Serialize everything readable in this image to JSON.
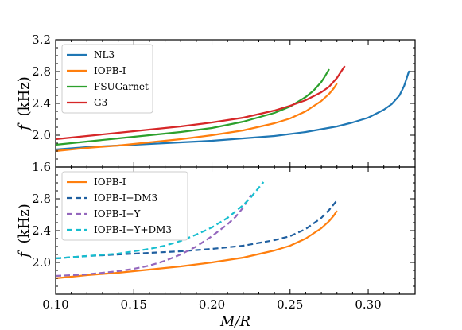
{
  "chart_data": [
    {
      "type": "line",
      "panel": "top",
      "ylabel_symbol": "f",
      "ylabel_unit": "(kHz)",
      "xlim": [
        0.1,
        0.33
      ],
      "ylim": [
        1.6,
        3.2
      ],
      "yticks": [
        1.6,
        2.0,
        2.4,
        2.8,
        3.2
      ],
      "ytick_labels": [
        "1.6",
        "2.0",
        "2.4",
        "2.8",
        "3.2"
      ],
      "legend_position": "top-left",
      "series": [
        {
          "name": "NL3",
          "color": "#1f77b4",
          "dash": "solid",
          "x": [
            0.1,
            0.12,
            0.14,
            0.16,
            0.18,
            0.2,
            0.22,
            0.24,
            0.26,
            0.28,
            0.29,
            0.3,
            0.31,
            0.315,
            0.32,
            0.323,
            0.325,
            0.326,
            0.327
          ],
          "y": [
            1.82,
            1.85,
            1.87,
            1.89,
            1.91,
            1.93,
            1.96,
            1.99,
            2.04,
            2.11,
            2.16,
            2.22,
            2.32,
            2.39,
            2.5,
            2.62,
            2.74,
            2.8,
            2.8
          ]
        },
        {
          "name": "IOPB-I",
          "color": "#ff7f0e",
          "dash": "solid",
          "x": [
            0.1,
            0.12,
            0.14,
            0.16,
            0.18,
            0.2,
            0.22,
            0.24,
            0.25,
            0.26,
            0.27,
            0.275,
            0.278,
            0.28
          ],
          "y": [
            1.8,
            1.84,
            1.87,
            1.91,
            1.95,
            2.0,
            2.06,
            2.15,
            2.21,
            2.3,
            2.43,
            2.52,
            2.59,
            2.65
          ]
        },
        {
          "name": "FSUGarnet",
          "color": "#2ca02c",
          "dash": "solid",
          "x": [
            0.1,
            0.12,
            0.14,
            0.16,
            0.18,
            0.2,
            0.22,
            0.24,
            0.25,
            0.26,
            0.265,
            0.27,
            0.272,
            0.275
          ],
          "y": [
            1.88,
            1.92,
            1.96,
            2.0,
            2.04,
            2.09,
            2.17,
            2.28,
            2.36,
            2.48,
            2.56,
            2.67,
            2.73,
            2.83
          ]
        },
        {
          "name": "G3",
          "color": "#d62728",
          "dash": "solid",
          "x": [
            0.1,
            0.12,
            0.14,
            0.16,
            0.18,
            0.2,
            0.22,
            0.24,
            0.25,
            0.26,
            0.27,
            0.275,
            0.28,
            0.285
          ],
          "y": [
            1.95,
            1.99,
            2.03,
            2.07,
            2.11,
            2.16,
            2.22,
            2.31,
            2.37,
            2.44,
            2.54,
            2.61,
            2.72,
            2.87
          ]
        }
      ]
    },
    {
      "type": "line",
      "panel": "bottom",
      "xlabel": "M/R",
      "ylabel_symbol": "f",
      "ylabel_unit": "(kHz)",
      "xlim": [
        0.1,
        0.33
      ],
      "ylim": [
        1.6,
        3.2
      ],
      "xticks": [
        0.1,
        0.15,
        0.2,
        0.25,
        0.3
      ],
      "xtick_labels": [
        "0.10",
        "0.15",
        "0.20",
        "0.25",
        "0.30"
      ],
      "yticks": [
        2.0,
        2.4,
        2.8
      ],
      "ytick_labels": [
        "2.0",
        "2.4",
        "2.8"
      ],
      "legend_position": "top-left",
      "series": [
        {
          "name": "IOPB-I",
          "color": "#ff7f0e",
          "dash": "solid",
          "x": [
            0.1,
            0.12,
            0.14,
            0.16,
            0.18,
            0.2,
            0.22,
            0.24,
            0.25,
            0.26,
            0.27,
            0.275,
            0.278,
            0.28
          ],
          "y": [
            1.8,
            1.84,
            1.87,
            1.91,
            1.95,
            2.0,
            2.06,
            2.15,
            2.21,
            2.3,
            2.43,
            2.52,
            2.59,
            2.65
          ]
        },
        {
          "name": "IOPB-I+DM3",
          "color": "#1f5fa0",
          "dash": "dashed",
          "x": [
            0.1,
            0.12,
            0.14,
            0.16,
            0.18,
            0.2,
            0.22,
            0.24,
            0.25,
            0.26,
            0.27,
            0.275,
            0.28
          ],
          "y": [
            2.05,
            2.08,
            2.1,
            2.12,
            2.14,
            2.17,
            2.21,
            2.28,
            2.33,
            2.42,
            2.56,
            2.66,
            2.78
          ]
        },
        {
          "name": "IOPB-I+Y",
          "color": "#9467bd",
          "dash": "dashed",
          "x": [
            0.1,
            0.12,
            0.14,
            0.15,
            0.16,
            0.17,
            0.18,
            0.19,
            0.2,
            0.21,
            0.215,
            0.22,
            0.225
          ],
          "y": [
            1.83,
            1.85,
            1.89,
            1.92,
            1.96,
            2.02,
            2.1,
            2.2,
            2.33,
            2.48,
            2.57,
            2.69,
            2.85
          ]
        },
        {
          "name": "IOPB-I+Y+DM3",
          "color": "#17becf",
          "dash": "dashed",
          "x": [
            0.1,
            0.12,
            0.14,
            0.15,
            0.16,
            0.17,
            0.18,
            0.19,
            0.2,
            0.21,
            0.22,
            0.225,
            0.23,
            0.233
          ],
          "y": [
            2.05,
            2.08,
            2.11,
            2.14,
            2.17,
            2.21,
            2.27,
            2.35,
            2.44,
            2.56,
            2.72,
            2.82,
            2.94,
            3.01
          ]
        }
      ]
    }
  ]
}
